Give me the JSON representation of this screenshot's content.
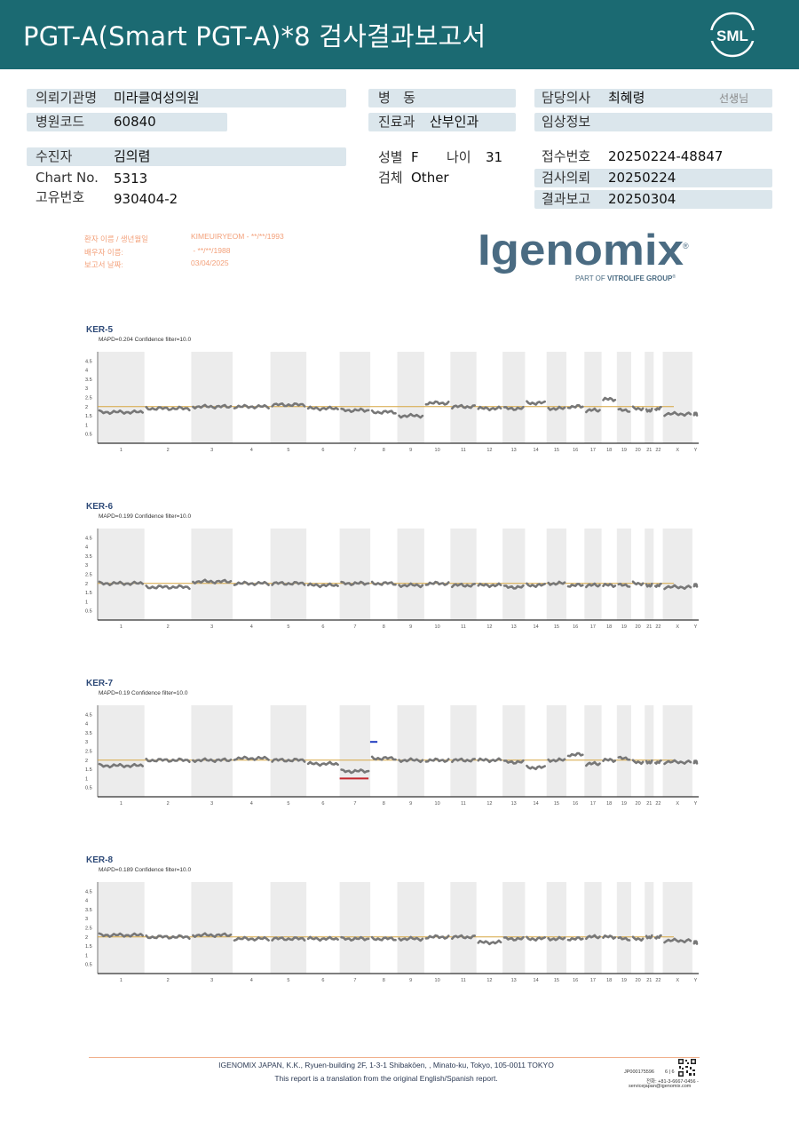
{
  "header": {
    "title": "PGT-A(Smart  PGT-A)*8 검사결과보고서",
    "logo_text": "SML",
    "bg_color": "#1b6a72"
  },
  "patient_info": {
    "institution_label": "의뢰기관명",
    "institution_value": "미라클여성의원",
    "hospital_code_label": "병원코드",
    "hospital_code_value": "60840",
    "patient_label": "수진자",
    "patient_value": "김의렴",
    "chart_no_label": "Chart No.",
    "chart_no_value": "5313",
    "id_label": "고유번호",
    "id_value": "930404-2",
    "ward_label": "병   동",
    "ward_value": "",
    "dept_label": "진료과",
    "dept_value": "산부인과",
    "sex_label": "성별",
    "sex_value": "F",
    "age_label": "나이",
    "age_value": "31",
    "specimen_label": "검체",
    "specimen_value": "Other",
    "doctor_label": "담당의사",
    "doctor_value": "최혜령",
    "doctor_suffix": "선생님",
    "clinical_label": "임상정보",
    "clinical_value": "",
    "receipt_label": "접수번호",
    "receipt_value": "20250224-48847",
    "request_label": "검사의뢰",
    "request_value": "20250224",
    "report_label": "결과보고",
    "report_value": "20250304"
  },
  "translation_box": {
    "patient_name_label": "환자 이름 / 생년월일",
    "patient_name_value": "KIMEUIRYEOM - **/**/1993",
    "spouse_label": "배우자 이름:",
    "spouse_value": " - **/**/1988",
    "report_date_label": "보고서 날짜:",
    "report_date_value": "03/04/2025"
  },
  "brand": {
    "name": "Igenomix",
    "registered": "®",
    "tagline_prefix": "PART OF ",
    "tagline_bold": "VITROLIFE GROUP",
    "tagline_tm": "®",
    "color": "#4a6b82"
  },
  "chart_data": [
    {
      "type": "scatter",
      "title": "KER-5",
      "subtitle": "MAPD=0.204 Confidence filter=10.0",
      "ylim": [
        0,
        5
      ],
      "yticks": [
        "4.5",
        "4",
        "3.5",
        "3",
        "2.5",
        "2",
        "1.5",
        "1",
        "0.5"
      ],
      "categories": [
        "1",
        "2",
        "3",
        "4",
        "5",
        "6",
        "7",
        "8",
        "9",
        "10",
        "11",
        "12",
        "13",
        "14",
        "15",
        "16",
        "17",
        "18",
        "19",
        "20",
        "21",
        "22",
        "X",
        "Y"
      ],
      "reference_line": 2,
      "segments": [
        1.7,
        1.9,
        2.0,
        2.0,
        2.1,
        1.9,
        1.8,
        1.7,
        1.5,
        2.2,
        2.0,
        1.9,
        1.9,
        2.2,
        1.9,
        2.0,
        1.8,
        2.4,
        1.8,
        1.9,
        1.8,
        1.9,
        1.6,
        1.6
      ],
      "calls": []
    },
    {
      "type": "scatter",
      "title": "KER-6",
      "subtitle": "MAPD=0.199 Confidence filter=10.0",
      "ylim": [
        0,
        5
      ],
      "yticks": [
        "4.5",
        "4",
        "3.5",
        "3",
        "2.5",
        "2",
        "1.5",
        "1",
        "0.5"
      ],
      "categories": [
        "1",
        "2",
        "3",
        "4",
        "5",
        "6",
        "7",
        "8",
        "9",
        "10",
        "11",
        "12",
        "13",
        "14",
        "15",
        "16",
        "17",
        "18",
        "19",
        "20",
        "21",
        "22",
        "X",
        "Y"
      ],
      "reference_line": 2,
      "segments": [
        2.0,
        1.8,
        2.1,
        2.0,
        2.0,
        1.9,
        2.0,
        2.0,
        1.9,
        2.0,
        1.9,
        1.9,
        1.8,
        1.9,
        2.0,
        1.9,
        1.9,
        1.9,
        1.9,
        2.0,
        1.9,
        1.9,
        1.8,
        1.9
      ],
      "calls": []
    },
    {
      "type": "scatter",
      "title": "KER-7",
      "subtitle": "MAPD=0.19 Confidence filter=10.0",
      "ylim": [
        0,
        5
      ],
      "yticks": [
        "4.5",
        "4",
        "3.5",
        "3",
        "2.5",
        "2",
        "1.5",
        "1",
        "0.5"
      ],
      "categories": [
        "1",
        "2",
        "3",
        "4",
        "5",
        "6",
        "7",
        "8",
        "9",
        "10",
        "11",
        "12",
        "13",
        "14",
        "15",
        "16",
        "17",
        "18",
        "19",
        "20",
        "21",
        "22",
        "X",
        "Y"
      ],
      "reference_line": 2,
      "segments": [
        1.7,
        2.0,
        2.0,
        2.1,
        2.0,
        1.8,
        1.4,
        2.1,
        2.0,
        2.0,
        2.0,
        2.0,
        1.9,
        1.6,
        2.0,
        2.3,
        1.8,
        2.0,
        2.1,
        1.9,
        1.9,
        1.9,
        1.9,
        1.9
      ],
      "calls": [
        {
          "chromosome": "7",
          "value": 1.0,
          "color": "#c4272e"
        },
        {
          "chromosome": "7",
          "value": 3.0,
          "color": "#1f3bbf"
        }
      ]
    },
    {
      "type": "scatter",
      "title": "KER-8",
      "subtitle": "MAPD=0.189 Confidence filter=10.0",
      "ylim": [
        0,
        5
      ],
      "yticks": [
        "4.5",
        "4",
        "3.5",
        "3",
        "2.5",
        "2",
        "1.5",
        "1",
        "0.5"
      ],
      "categories": [
        "1",
        "2",
        "3",
        "4",
        "5",
        "6",
        "7",
        "8",
        "9",
        "10",
        "11",
        "12",
        "13",
        "14",
        "15",
        "16",
        "17",
        "18",
        "19",
        "20",
        "21",
        "22",
        "X",
        "Y"
      ],
      "reference_line": 2,
      "segments": [
        2.1,
        2.0,
        2.1,
        1.9,
        1.9,
        1.9,
        1.9,
        1.9,
        1.9,
        2.0,
        2.0,
        1.7,
        1.9,
        1.9,
        1.9,
        1.9,
        2.0,
        2.0,
        1.9,
        1.9,
        2.0,
        2.0,
        1.8,
        1.7
      ],
      "calls": []
    }
  ],
  "footer": {
    "address": "IGENOMIX JAPAN, K.K., Ryuen-building 2F, 1-3-1 Shibakōen, , Minato-ku, Tokyo, 105-0011 TOKYO",
    "translation_note": "This report is a translation from the original English/Spanish report.",
    "doc_code": "JP000175596",
    "page": "6 | 6",
    "phone": "전화:  +81-3-6667-0456  -",
    "email": "servicejapan@igenomix.com"
  }
}
